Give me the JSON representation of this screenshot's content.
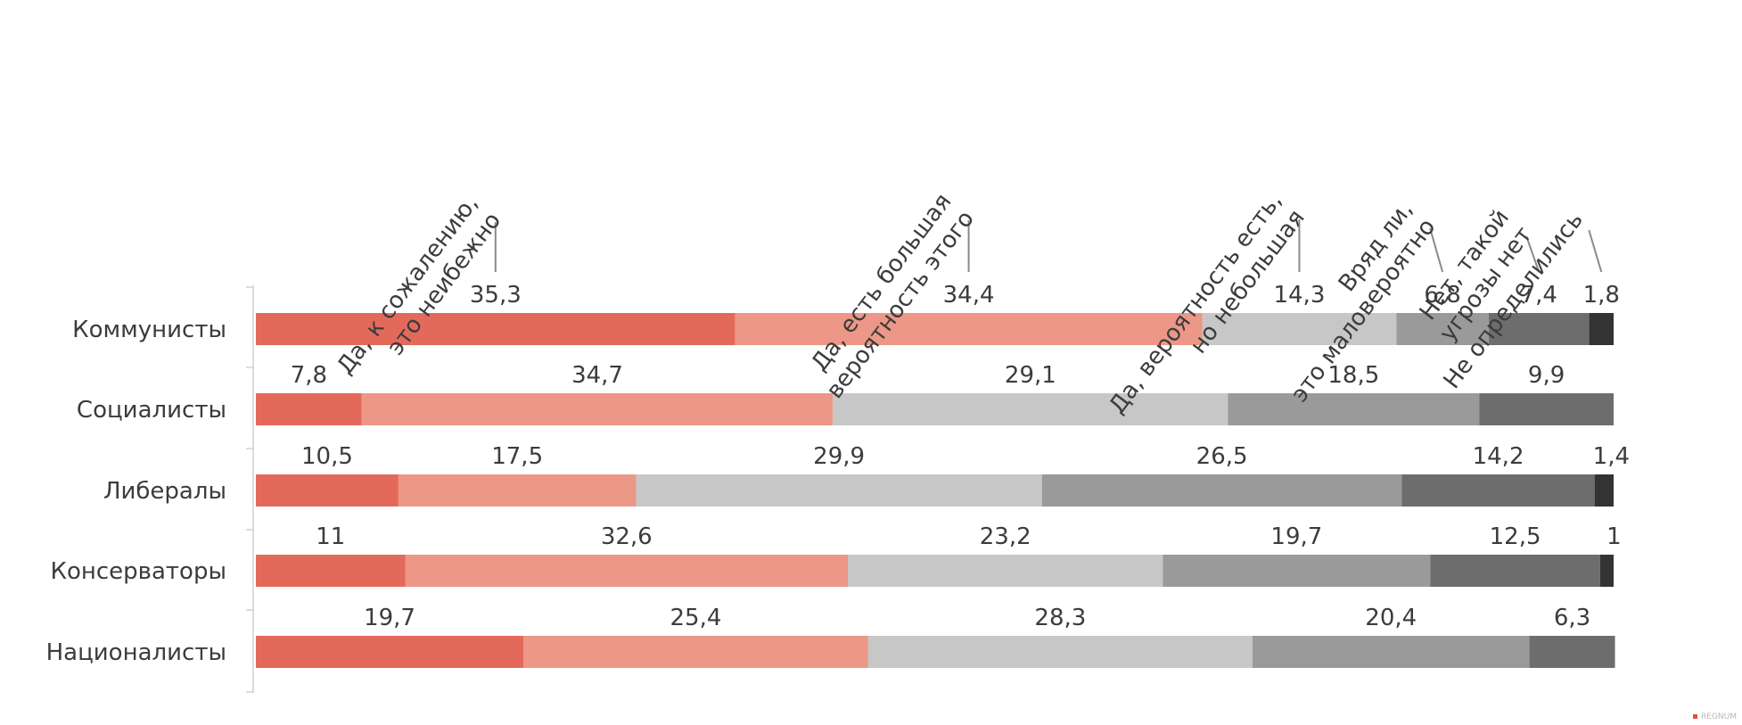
{
  "chart_data": {
    "type": "bar",
    "orientation": "horizontal",
    "stacked": true,
    "title": "",
    "categories": [
      "Коммунисты",
      "Социалисты",
      "Либералы",
      "Консерваторы",
      "Националисты"
    ],
    "series": [
      {
        "name": "Да, к сожалению, это неибежно",
        "color": "#e36a5b",
        "values": [
          35.3,
          7.8,
          10.5,
          11,
          19.7
        ],
        "labels": [
          "35,3",
          "7,8",
          "10,5",
          "11",
          "19,7"
        ]
      },
      {
        "name": "Да, есть большая вероятность этого",
        "color": "#ec9787",
        "values": [
          34.4,
          34.7,
          17.5,
          32.6,
          25.4
        ],
        "labels": [
          "34,4",
          "34,7",
          "17,5",
          "32,6",
          "25,4"
        ]
      },
      {
        "name": "Да, вероятность есть, но небольшая",
        "color": "#c6c7c6",
        "values": [
          14.3,
          29.1,
          29.9,
          23.2,
          28.3
        ],
        "labels": [
          "14,3",
          "29,1",
          "29,9",
          "23,2",
          "28,3"
        ]
      },
      {
        "name": "Вряд ли, это маловероятно",
        "color": "#9a9a9a",
        "values": [
          6.8,
          18.5,
          26.5,
          19.7,
          20.4
        ],
        "labels": [
          "6,8",
          "18,5",
          "26,5",
          "19,7",
          "20,4"
        ]
      },
      {
        "name": "Нет, такой угрозы нет",
        "color": "#6d6d6d",
        "values": [
          7.4,
          9.9,
          14.2,
          12.5,
          6.3
        ],
        "labels": [
          "7,4",
          "9,9",
          "14,2",
          "12,5",
          "6,3"
        ]
      },
      {
        "name": "Не определились",
        "color": "#333333",
        "values": [
          1.8,
          0,
          1.4,
          1,
          0
        ],
        "labels": [
          "1,8",
          "",
          "1,4",
          "1",
          ""
        ]
      }
    ],
    "xlim": [
      0,
      100
    ],
    "legend": "rotated callouts above first bar",
    "grid": false
  },
  "watermark": "REGNUM"
}
